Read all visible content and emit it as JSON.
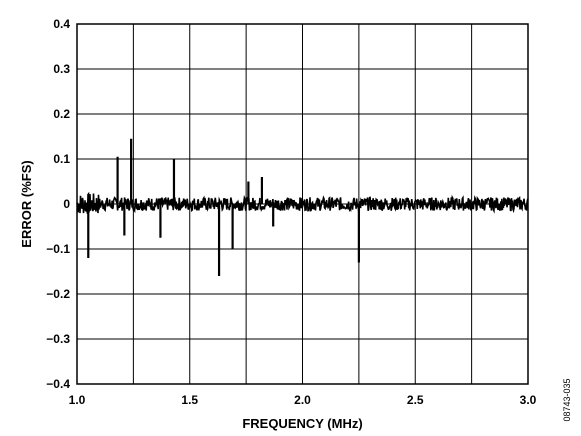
{
  "chart_data": {
    "type": "line",
    "title": "",
    "xlabel": "FREQUENCY (MHz)",
    "ylabel": "ERROR (%FS)",
    "xlim": [
      1.0,
      3.0
    ],
    "ylim": [
      -0.4,
      0.4
    ],
    "grid": true,
    "x_ticks": [
      1.0,
      1.5,
      2.0,
      2.5,
      3.0
    ],
    "x_tick_labels": [
      "1.0",
      "1.5",
      "2.0",
      "2.5",
      "3.0"
    ],
    "y_ticks": [
      0.4,
      0.3,
      0.2,
      0.1,
      0,
      -0.1,
      -0.2,
      -0.3,
      -0.4
    ],
    "y_tick_labels": [
      "0.4",
      "0.3",
      "0.2",
      "0.1",
      "0",
      "−0.1",
      "−0.2",
      "−0.3",
      "−0.4"
    ],
    "x_grid": [
      1.0,
      1.25,
      1.5,
      1.75,
      2.0,
      2.25,
      2.5,
      2.75,
      3.0
    ],
    "series": [
      {
        "noise_baseline": 0.0,
        "noise_amplitude": 0.015,
        "spikes": [
          {
            "x": 1.05,
            "y": -0.12
          },
          {
            "x": 1.18,
            "y": 0.105
          },
          {
            "x": 1.21,
            "y": -0.07
          },
          {
            "x": 1.24,
            "y": 0.145
          },
          {
            "x": 1.37,
            "y": -0.075
          },
          {
            "x": 1.43,
            "y": 0.1
          },
          {
            "x": 1.63,
            "y": -0.16
          },
          {
            "x": 1.69,
            "y": -0.1
          },
          {
            "x": 1.76,
            "y": 0.05
          },
          {
            "x": 1.82,
            "y": 0.06
          },
          {
            "x": 1.87,
            "y": -0.05
          },
          {
            "x": 2.25,
            "y": -0.13
          }
        ]
      }
    ],
    "color": "#000000"
  },
  "figure_id": "08743-035"
}
